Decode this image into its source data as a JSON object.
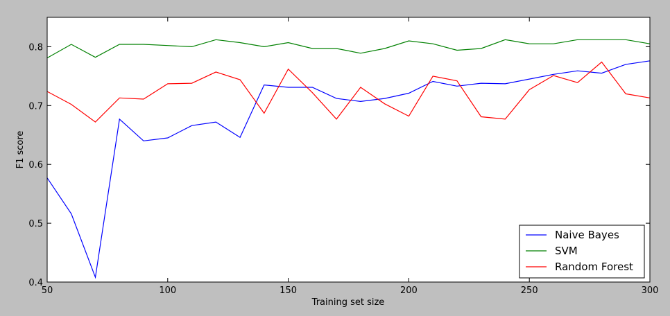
{
  "chart_data": {
    "type": "line",
    "title": "",
    "xlabel": "Training set size",
    "ylabel": "F1 score",
    "xlim": [
      50,
      300
    ],
    "ylim": [
      0.4,
      0.85
    ],
    "xticks": [
      50,
      100,
      150,
      200,
      250,
      300
    ],
    "yticks": [
      0.4,
      0.5,
      0.6,
      0.7,
      0.8
    ],
    "ytick_labels": [
      "0.4",
      "0.5",
      "0.6",
      "0.7",
      "0.8"
    ],
    "grid": false,
    "legend_position": "bottom-right",
    "x": [
      50,
      60,
      70,
      80,
      90,
      100,
      110,
      120,
      130,
      140,
      150,
      160,
      170,
      180,
      190,
      200,
      210,
      220,
      230,
      240,
      250,
      260,
      270,
      280,
      290,
      300
    ],
    "series": [
      {
        "name": "Naive Bayes",
        "color": "#0000ff",
        "values": [
          0.577,
          0.516,
          0.408,
          0.677,
          0.64,
          0.645,
          0.666,
          0.672,
          0.646,
          0.735,
          0.731,
          0.731,
          0.712,
          0.707,
          0.712,
          0.721,
          0.741,
          0.733,
          0.738,
          0.737,
          0.745,
          0.753,
          0.759,
          0.755,
          0.77,
          0.776
        ]
      },
      {
        "name": "SVM",
        "color": "#008000",
        "values": [
          0.781,
          0.804,
          0.782,
          0.804,
          0.804,
          0.802,
          0.8,
          0.812,
          0.807,
          0.8,
          0.807,
          0.797,
          0.797,
          0.789,
          0.797,
          0.81,
          0.805,
          0.794,
          0.797,
          0.812,
          0.805,
          0.805,
          0.812,
          0.812,
          0.812,
          0.805
        ]
      },
      {
        "name": "Random Forest",
        "color": "#ff0000",
        "values": [
          0.724,
          0.702,
          0.672,
          0.713,
          0.711,
          0.737,
          0.738,
          0.757,
          0.744,
          0.687,
          0.762,
          0.722,
          0.677,
          0.731,
          0.703,
          0.682,
          0.75,
          0.742,
          0.681,
          0.677,
          0.727,
          0.751,
          0.739,
          0.774,
          0.72,
          0.713
        ]
      }
    ]
  }
}
